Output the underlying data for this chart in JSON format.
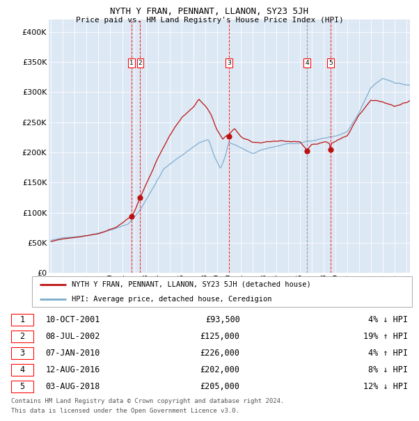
{
  "title": "NYTH Y FRAN, PENNANT, LLANON, SY23 5JH",
  "subtitle": "Price paid vs. HM Land Registry's House Price Index (HPI)",
  "legend_line1": "NYTH Y FRAN, PENNANT, LLANON, SY23 5JH (detached house)",
  "legend_line2": "HPI: Average price, detached house, Ceredigion",
  "footer1": "Contains HM Land Registry data © Crown copyright and database right 2024.",
  "footer2": "This data is licensed under the Open Government Licence v3.0.",
  "hpi_color": "#7aabcc",
  "price_color": "#bb1111",
  "plot_bg": "#dde8f5",
  "transactions": [
    {
      "label": "1",
      "price": 93500,
      "x": 2001.775,
      "vline_color": "red"
    },
    {
      "label": "2",
      "price": 125000,
      "x": 2002.517,
      "vline_color": "red"
    },
    {
      "label": "3",
      "price": 226000,
      "x": 2010.017,
      "vline_color": "red"
    },
    {
      "label": "4",
      "price": 202000,
      "x": 2016.612,
      "vline_color": "#888888"
    },
    {
      "label": "5",
      "price": 205000,
      "x": 2018.586,
      "vline_color": "red"
    }
  ],
  "table_rows": [
    [
      "1",
      "10-OCT-2001",
      "£93,500",
      "4% ↓ HPI"
    ],
    [
      "2",
      "08-JUL-2002",
      "£125,000",
      "19% ↑ HPI"
    ],
    [
      "3",
      "07-JAN-2010",
      "£226,000",
      "4% ↑ HPI"
    ],
    [
      "4",
      "12-AUG-2016",
      "£202,000",
      "8% ↓ HPI"
    ],
    [
      "5",
      "03-AUG-2018",
      "£205,000",
      "12% ↓ HPI"
    ]
  ],
  "ylim": [
    0,
    420000
  ],
  "xlim": [
    1994.8,
    2025.3
  ],
  "yticks": [
    0,
    50000,
    100000,
    150000,
    200000,
    250000,
    300000,
    350000,
    400000
  ],
  "ytick_labels": [
    "£0",
    "£50K",
    "£100K",
    "£150K",
    "£200K",
    "£250K",
    "£300K",
    "£350K",
    "£400K"
  ]
}
